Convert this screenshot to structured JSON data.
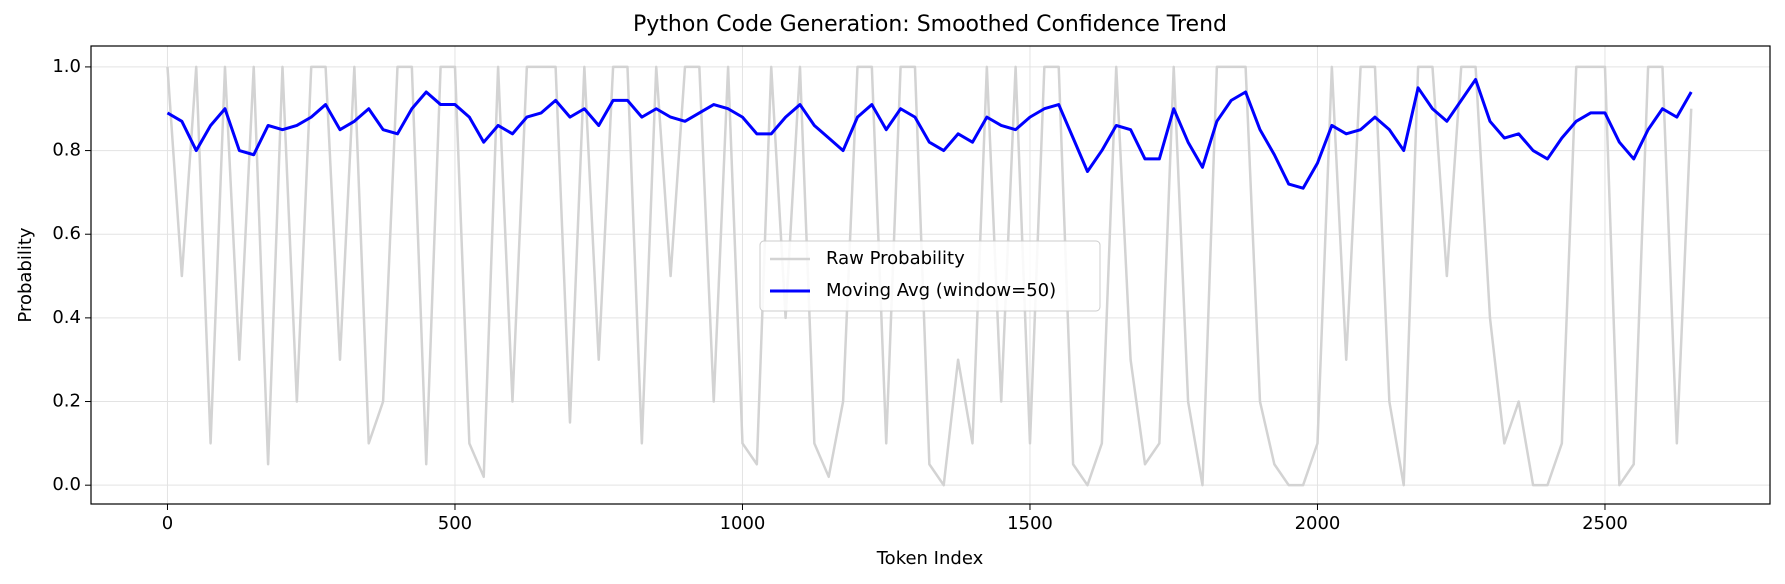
{
  "chart_data": {
    "type": "line",
    "title": "Python Code Generation: Smoothed Confidence Trend",
    "xlabel": "Token Index",
    "ylabel": "Probability",
    "x": [
      0,
      25,
      50,
      75,
      100,
      125,
      150,
      175,
      200,
      225,
      250,
      275,
      300,
      325,
      350,
      375,
      400,
      425,
      450,
      475,
      500,
      525,
      550,
      575,
      600,
      625,
      650,
      675,
      700,
      725,
      750,
      775,
      800,
      825,
      850,
      875,
      900,
      925,
      950,
      975,
      1000,
      1025,
      1050,
      1075,
      1100,
      1125,
      1150,
      1175,
      1200,
      1225,
      1250,
      1275,
      1300,
      1325,
      1350,
      1375,
      1400,
      1425,
      1450,
      1475,
      1500,
      1525,
      1550,
      1575,
      1600,
      1625,
      1650,
      1675,
      1700,
      1725,
      1750,
      1775,
      1800,
      1825,
      1850,
      1875,
      1900,
      1925,
      1950,
      1975,
      2000,
      2025,
      2050,
      2075,
      2100,
      2125,
      2150,
      2175,
      2200,
      2225,
      2250,
      2275,
      2300,
      2325,
      2350,
      2375,
      2400,
      2425,
      2450,
      2475,
      2500,
      2525,
      2550,
      2575,
      2600,
      2625,
      2650
    ],
    "series": [
      {
        "name": "Raw Probability",
        "color": "#d3d3d3",
        "width": 2.5,
        "values": [
          1.0,
          0.5,
          1.0,
          0.1,
          1.0,
          0.3,
          1.0,
          0.05,
          1.0,
          0.2,
          1.0,
          1.0,
          0.3,
          1.0,
          0.1,
          0.2,
          1.0,
          1.0,
          0.05,
          1.0,
          1.0,
          0.1,
          0.02,
          1.0,
          0.2,
          1.0,
          1.0,
          1.0,
          0.15,
          1.0,
          0.3,
          1.0,
          1.0,
          0.1,
          1.0,
          0.5,
          1.0,
          1.0,
          0.2,
          1.0,
          0.1,
          0.05,
          1.0,
          0.4,
          1.0,
          0.1,
          0.02,
          0.2,
          1.0,
          1.0,
          0.1,
          1.0,
          1.0,
          0.05,
          0.0,
          0.3,
          0.1,
          1.0,
          0.2,
          1.0,
          0.1,
          1.0,
          1.0,
          0.05,
          0.0,
          0.1,
          1.0,
          0.3,
          0.05,
          0.1,
          1.0,
          0.2,
          0.0,
          1.0,
          1.0,
          1.0,
          0.2,
          0.05,
          0.0,
          0.0,
          0.1,
          1.0,
          0.3,
          1.0,
          1.0,
          0.2,
          0.0,
          1.0,
          1.0,
          0.5,
          1.0,
          1.0,
          0.4,
          0.1,
          0.2,
          0.0,
          0.0,
          0.1,
          1.0,
          1.0,
          1.0,
          0.0,
          0.05,
          1.0,
          1.0,
          0.1,
          0.9
        ]
      },
      {
        "name": "Moving Avg (window=50)",
        "color": "#0000ff",
        "width": 3,
        "values": [
          0.89,
          0.87,
          0.8,
          0.86,
          0.9,
          0.8,
          0.79,
          0.86,
          0.85,
          0.86,
          0.88,
          0.91,
          0.85,
          0.87,
          0.9,
          0.85,
          0.84,
          0.9,
          0.94,
          0.91,
          0.91,
          0.88,
          0.82,
          0.86,
          0.84,
          0.88,
          0.89,
          0.92,
          0.88,
          0.9,
          0.86,
          0.92,
          0.92,
          0.88,
          0.9,
          0.88,
          0.87,
          0.89,
          0.91,
          0.9,
          0.88,
          0.84,
          0.84,
          0.88,
          0.91,
          0.86,
          0.83,
          0.8,
          0.88,
          0.91,
          0.85,
          0.9,
          0.88,
          0.82,
          0.8,
          0.84,
          0.82,
          0.88,
          0.86,
          0.85,
          0.88,
          0.9,
          0.91,
          0.83,
          0.75,
          0.8,
          0.86,
          0.85,
          0.78,
          0.78,
          0.9,
          0.82,
          0.76,
          0.87,
          0.92,
          0.94,
          0.85,
          0.79,
          0.72,
          0.71,
          0.77,
          0.86,
          0.84,
          0.85,
          0.88,
          0.85,
          0.8,
          0.95,
          0.9,
          0.87,
          0.92,
          0.97,
          0.87,
          0.83,
          0.84,
          0.8,
          0.78,
          0.83,
          0.87,
          0.89,
          0.89,
          0.82,
          0.78,
          0.85,
          0.9,
          0.88,
          0.94
        ]
      }
    ],
    "xlim": [
      -133,
      2787
    ],
    "ylim": [
      -0.045,
      1.05
    ],
    "xticks": [
      0,
      500,
      1000,
      1500,
      2000,
      2500
    ],
    "yticks": [
      {
        "value": 0,
        "label": "0.0"
      },
      0.2,
      0.4,
      0.6,
      0.8,
      {
        "value": 1,
        "label": "1.0"
      }
    ],
    "grid": true,
    "legend": "center"
  }
}
